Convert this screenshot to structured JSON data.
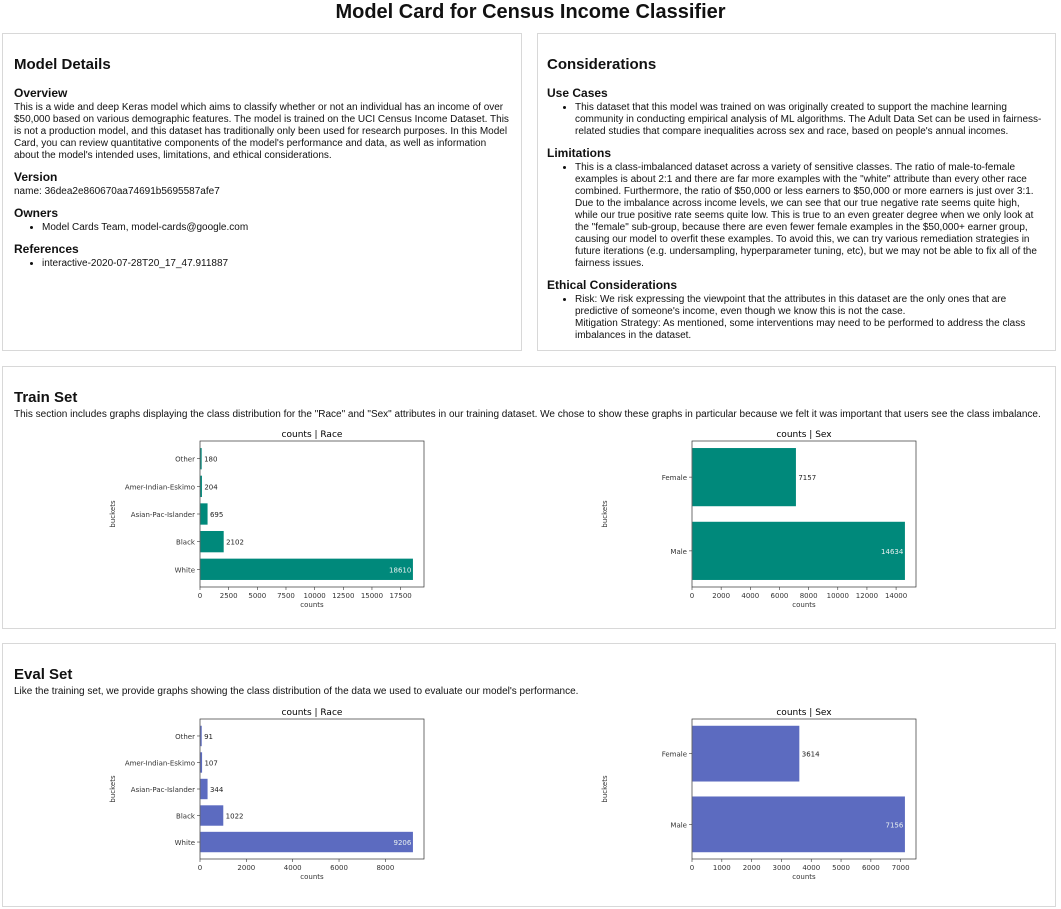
{
  "title": "Model Card for Census Income Classifier",
  "model_details": {
    "heading": "Model Details",
    "overview_heading": "Overview",
    "overview": "This is a wide and deep Keras model which aims to classify whether or not an individual has an income of over $50,000 based on various demographic features. The model is trained on the UCI Census Income Dataset. This is not a production model, and this dataset has traditionally only been used for research purposes. In this Model Card, you can review quantitative components of the model's performance and data, as well as information about the model's intended uses, limitations, and ethical considerations.",
    "version_heading": "Version",
    "version": "name: 36dea2e860670aa74691b5695587afe7",
    "owners_heading": "Owners",
    "owners": [
      "Model Cards Team, model-cards@google.com"
    ],
    "references_heading": "References",
    "references": [
      "interactive-2020-07-28T20_17_47.911887"
    ]
  },
  "considerations": {
    "heading": "Considerations",
    "use_cases_heading": "Use Cases",
    "use_cases": [
      "This dataset that this model was trained on was originally created to support the machine learning community in conducting empirical analysis of ML algorithms. The Adult Data Set can be used in fairness-related studies that compare inequalities across sex and race, based on people's annual incomes."
    ],
    "limitations_heading": "Limitations",
    "limitations": [
      "This is a class-imbalanced dataset across a variety of sensitive classes. The ratio of male-to-female examples is about 2:1 and there are far more examples with the \"white\" attribute than every other race combined. Furthermore, the ratio of $50,000 or less earners to $50,000 or more earners is just over 3:1. Due to the imbalance across income levels, we can see that our true negative rate seems quite high, while our true positive rate seems quite low. This is true to an even greater degree when we only look at the \"female\" sub-group, because there are even fewer female examples in the $50,000+ earner group, causing our model to overfit these examples. To avoid this, we can try various remediation strategies in future iterations (e.g. undersampling, hyperparameter tuning, etc), but we may not be able to fix all of the fairness issues."
    ],
    "ethical_heading": "Ethical Considerations",
    "ethical_risk": "Risk: We risk expressing the viewpoint that the attributes in this dataset are the only ones that are predictive of someone's income, even though we know this is not the case.",
    "ethical_mitigation": "Mitigation Strategy: As mentioned, some interventions may need to be performed to address the class imbalances in the dataset."
  },
  "train_set": {
    "heading": "Train Set",
    "description": "This section includes graphs displaying the class distribution for the \"Race\" and \"Sex\" attributes in our training dataset. We chose to show these graphs in particular because we felt it was important that users see the class imbalance."
  },
  "eval_set": {
    "heading": "Eval Set",
    "description": "Like the training set, we provide graphs showing the class distribution of the data we used to evaluate our model's performance."
  },
  "chart_data": [
    {
      "type": "bar",
      "orientation": "horizontal",
      "title": "counts | Race",
      "xlabel": "counts",
      "ylabel": "buckets",
      "categories": [
        "White",
        "Black",
        "Asian-Pac-Islander",
        "Amer-Indian-Eskimo",
        "Other"
      ],
      "values": [
        18610,
        2102,
        695,
        204,
        180
      ],
      "xlim": [
        0,
        19540
      ],
      "xticks": [
        0,
        2500,
        5000,
        7500,
        10000,
        12500,
        15000,
        17500
      ],
      "color": "#00897b",
      "grid": false
    },
    {
      "type": "bar",
      "orientation": "horizontal",
      "title": "counts | Sex",
      "xlabel": "counts",
      "ylabel": "buckets",
      "categories": [
        "Male",
        "Female"
      ],
      "values": [
        14634,
        7157
      ],
      "xlim": [
        0,
        15366
      ],
      "xticks": [
        0,
        2000,
        4000,
        6000,
        8000,
        10000,
        12000,
        14000
      ],
      "color": "#00897b",
      "grid": false
    },
    {
      "type": "bar",
      "orientation": "horizontal",
      "title": "counts | Race",
      "xlabel": "counts",
      "ylabel": "buckets",
      "categories": [
        "White",
        "Black",
        "Asian-Pac-Islander",
        "Amer-Indian-Eskimo",
        "Other"
      ],
      "values": [
        9206,
        1022,
        344,
        107,
        91
      ],
      "xlim": [
        0,
        9666
      ],
      "xticks": [
        0,
        2000,
        4000,
        6000,
        8000
      ],
      "color": "#5c6bc0",
      "grid": false
    },
    {
      "type": "bar",
      "orientation": "horizontal",
      "title": "counts | Sex",
      "xlabel": "counts",
      "ylabel": "buckets",
      "categories": [
        "Male",
        "Female"
      ],
      "values": [
        7156,
        3614
      ],
      "xlim": [
        0,
        7514
      ],
      "xticks": [
        0,
        1000,
        2000,
        3000,
        4000,
        5000,
        6000,
        7000
      ],
      "color": "#5c6bc0",
      "grid": false
    }
  ]
}
